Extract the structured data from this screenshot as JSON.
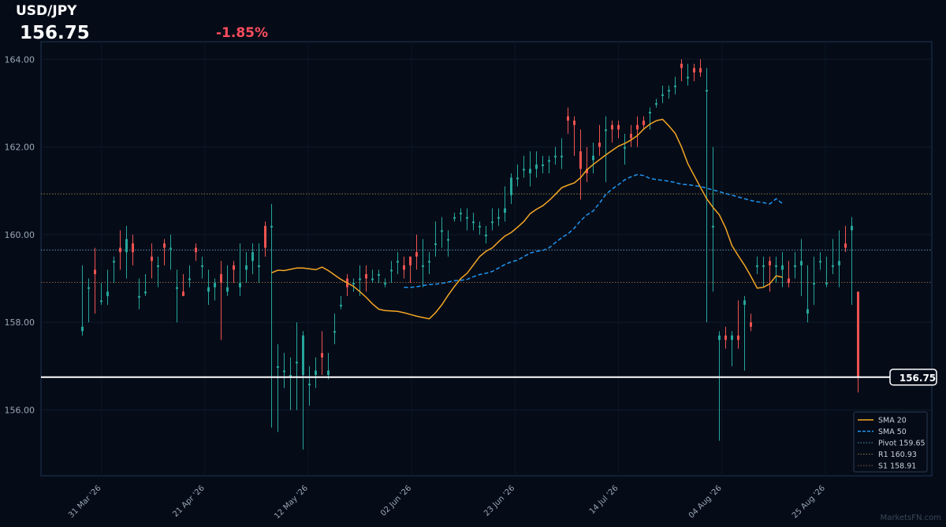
{
  "header": {
    "symbol": "USD/JPY",
    "last_price": "156.75",
    "change_pct": "-1.85%"
  },
  "watermark": "MarketsFN.com",
  "colors": {
    "background": "#050c18",
    "up": "#26a69a",
    "down": "#ef5350",
    "change_negative": "#ff4d5e",
    "sma20": "#f5a623",
    "sma50": "#2196f3",
    "pivot": "#5c8fb0",
    "r1": "#8a7a3c",
    "s1": "#8a5a3c",
    "last_price_line": "#ffffff"
  },
  "chart_data": {
    "type": "candlestick",
    "ylim": [
      154.5,
      164.4
    ],
    "y_ticks": [
      "156.00",
      "158.00",
      "160.00",
      "162.00",
      "164.00"
    ],
    "x_ticks": [
      "31 Mar '26",
      "21 Apr '26",
      "12 May '26",
      "02 Jun '26",
      "23 Jun '26",
      "14 Jul '26",
      "04 Aug '26",
      "25 Aug '26"
    ],
    "legend_position": "bottom-right",
    "legend": [
      {
        "label": "SMA 20",
        "style": "solid",
        "color": "#f5a623"
      },
      {
        "label": "SMA 50",
        "style": "dashed",
        "color": "#2196f3"
      },
      {
        "label": "Pivot 159.65",
        "style": "dotted",
        "color": "#5c8fb0"
      },
      {
        "label": "R1 160.93",
        "style": "dotted",
        "color": "#8a7a3c"
      },
      {
        "label": "S1 158.91",
        "style": "dotted",
        "color": "#8a5a3c"
      }
    ],
    "levels": {
      "pivot": 159.65,
      "r1": 160.93,
      "s1": 158.91,
      "last": 156.75
    },
    "last_price_label": "156.75",
    "candles": [
      [
        157.8,
        159.3,
        157.7,
        157.9
      ],
      [
        158.8,
        159.0,
        158.0,
        158.8
      ],
      [
        159.2,
        159.7,
        158.2,
        159.1
      ],
      [
        158.5,
        158.9,
        158.4,
        158.5
      ],
      [
        158.6,
        159.2,
        158.4,
        158.7
      ],
      [
        159.4,
        159.5,
        158.9,
        159.4
      ],
      [
        159.7,
        160.1,
        159.2,
        159.6
      ],
      [
        159.6,
        160.2,
        159.0,
        159.9
      ],
      [
        159.8,
        160.0,
        159.3,
        159.6
      ],
      [
        158.6,
        159.0,
        158.3,
        158.6
      ],
      [
        158.7,
        159.1,
        158.6,
        158.7
      ],
      [
        159.5,
        159.8,
        159.0,
        159.4
      ],
      [
        159.3,
        159.5,
        158.8,
        159.3
      ],
      [
        159.8,
        159.9,
        159.3,
        159.7
      ],
      [
        159.7,
        160.0,
        159.2,
        159.7
      ],
      [
        158.8,
        159.2,
        158.0,
        158.8
      ],
      [
        158.7,
        159.1,
        158.6,
        158.6
      ],
      [
        159.0,
        159.3,
        158.8,
        159.0
      ],
      [
        159.7,
        159.8,
        159.4,
        159.6
      ],
      [
        159.3,
        159.5,
        159.0,
        159.3
      ],
      [
        158.7,
        159.2,
        158.4,
        158.8
      ],
      [
        158.8,
        159.0,
        158.5,
        158.9
      ],
      [
        159.1,
        159.4,
        157.6,
        158.9
      ],
      [
        158.7,
        159.3,
        158.6,
        158.8
      ],
      [
        159.3,
        159.4,
        158.9,
        159.2
      ],
      [
        158.8,
        159.8,
        158.6,
        158.9
      ],
      [
        159.2,
        159.6,
        158.9,
        159.3
      ],
      [
        159.4,
        159.8,
        159.1,
        159.6
      ],
      [
        159.3,
        159.8,
        158.9,
        159.3
      ],
      [
        160.2,
        160.3,
        159.5,
        159.7
      ],
      [
        160.2,
        160.7,
        155.6,
        160.2
      ],
      [
        157.0,
        157.5,
        155.5,
        157.0
      ],
      [
        156.9,
        157.3,
        156.5,
        156.9
      ],
      [
        156.8,
        157.2,
        156.0,
        156.8
      ],
      [
        157.1,
        158.0,
        156.0,
        157.1
      ],
      [
        156.8,
        157.8,
        155.1,
        157.7
      ],
      [
        156.6,
        157.0,
        156.1,
        156.6
      ],
      [
        156.8,
        157.2,
        156.5,
        156.9
      ],
      [
        157.3,
        157.8,
        156.8,
        157.2
      ],
      [
        156.8,
        157.3,
        156.7,
        156.9
      ],
      [
        157.8,
        158.2,
        157.5,
        157.8
      ],
      [
        158.4,
        158.6,
        158.3,
        158.4
      ],
      [
        159.0,
        159.1,
        158.6,
        158.8
      ],
      [
        158.9,
        159.0,
        158.7,
        158.9
      ],
      [
        159.0,
        159.3,
        158.6,
        159.0
      ],
      [
        159.1,
        159.3,
        158.7,
        159.0
      ],
      [
        159.0,
        159.2,
        158.9,
        159.0
      ],
      [
        159.1,
        159.2,
        158.9,
        159.1
      ],
      [
        158.9,
        159.0,
        158.8,
        158.9
      ],
      [
        159.2,
        159.4,
        158.9,
        159.2
      ],
      [
        159.4,
        159.6,
        159.1,
        159.4
      ],
      [
        159.3,
        159.5,
        159.0,
        159.2
      ],
      [
        159.5,
        159.5,
        158.9,
        159.3
      ],
      [
        159.6,
        160.0,
        159.2,
        159.5
      ],
      [
        159.3,
        159.9,
        158.8,
        159.3
      ],
      [
        159.4,
        159.6,
        159.1,
        159.4
      ],
      [
        159.8,
        160.3,
        159.5,
        159.8
      ],
      [
        160.1,
        160.4,
        159.7,
        160.1
      ],
      [
        159.9,
        160.1,
        159.5,
        159.9
      ],
      [
        160.4,
        160.5,
        160.3,
        160.4
      ],
      [
        160.5,
        160.6,
        160.3,
        160.5
      ],
      [
        160.4,
        160.6,
        160.1,
        160.4
      ],
      [
        160.3,
        160.5,
        160.1,
        160.3
      ],
      [
        160.2,
        160.3,
        160.0,
        160.2
      ],
      [
        160.0,
        160.2,
        159.8,
        160.0
      ],
      [
        160.3,
        160.6,
        160.1,
        160.3
      ],
      [
        160.4,
        160.6,
        160.2,
        160.4
      ],
      [
        160.5,
        161.1,
        160.3,
        160.6
      ],
      [
        160.9,
        161.4,
        160.7,
        161.3
      ],
      [
        161.3,
        161.6,
        161.1,
        161.3
      ],
      [
        161.5,
        161.8,
        161.3,
        161.5
      ],
      [
        161.4,
        161.9,
        161.1,
        161.5
      ],
      [
        161.5,
        161.9,
        161.3,
        161.6
      ],
      [
        161.6,
        161.8,
        161.4,
        161.6
      ],
      [
        161.7,
        161.8,
        161.4,
        161.7
      ],
      [
        161.8,
        162.0,
        161.6,
        161.8
      ],
      [
        161.8,
        162.2,
        161.5,
        161.8
      ],
      [
        162.7,
        162.9,
        162.3,
        162.6
      ],
      [
        162.6,
        162.7,
        161.8,
        162.5
      ],
      [
        161.9,
        162.4,
        160.8,
        161.5
      ],
      [
        161.5,
        162.0,
        161.2,
        161.4
      ],
      [
        161.7,
        162.1,
        161.4,
        161.8
      ],
      [
        162.1,
        162.5,
        161.8,
        162.0
      ],
      [
        162.4,
        162.7,
        161.2,
        162.4
      ],
      [
        162.5,
        162.6,
        162.1,
        162.4
      ],
      [
        162.5,
        162.6,
        162.2,
        162.4
      ],
      [
        162.0,
        162.3,
        161.6,
        162.0
      ],
      [
        162.3,
        162.5,
        162.0,
        162.2
      ],
      [
        162.5,
        162.7,
        162.0,
        162.4
      ],
      [
        162.6,
        162.7,
        162.4,
        162.5
      ],
      [
        162.8,
        162.9,
        162.4,
        162.8
      ],
      [
        163.0,
        163.1,
        162.9,
        163.0
      ],
      [
        163.2,
        163.4,
        163.0,
        163.2
      ],
      [
        163.3,
        163.4,
        163.1,
        163.3
      ],
      [
        163.4,
        163.6,
        163.2,
        163.4
      ],
      [
        163.9,
        164.0,
        163.5,
        163.8
      ],
      [
        163.6,
        163.9,
        163.4,
        163.6
      ],
      [
        163.8,
        163.9,
        163.5,
        163.7
      ],
      [
        163.8,
        164.0,
        163.6,
        163.7
      ],
      [
        163.3,
        163.8,
        158.0,
        163.3
      ],
      [
        160.2,
        162.0,
        158.7,
        160.2
      ],
      [
        157.6,
        157.8,
        155.3,
        157.7
      ],
      [
        157.7,
        157.9,
        157.4,
        157.6
      ],
      [
        157.6,
        157.8,
        157.0,
        157.7
      ],
      [
        157.7,
        158.5,
        157.4,
        157.6
      ],
      [
        158.4,
        158.6,
        156.9,
        158.5
      ],
      [
        158.0,
        158.2,
        157.8,
        157.9
      ],
      [
        159.3,
        159.5,
        159.1,
        159.3
      ],
      [
        159.3,
        159.5,
        158.8,
        159.3
      ],
      [
        159.4,
        159.5,
        158.7,
        159.3
      ],
      [
        159.3,
        159.5,
        158.9,
        159.3
      ],
      [
        159.2,
        159.6,
        158.8,
        159.3
      ],
      [
        159.0,
        159.4,
        158.8,
        158.9
      ],
      [
        159.3,
        159.6,
        159.0,
        159.3
      ],
      [
        159.3,
        159.9,
        158.6,
        159.4
      ],
      [
        158.2,
        159.3,
        158.0,
        158.3
      ],
      [
        158.9,
        159.5,
        158.4,
        158.9
      ],
      [
        159.4,
        159.6,
        159.2,
        159.4
      ],
      [
        158.9,
        159.5,
        158.8,
        158.9
      ],
      [
        159.3,
        159.9,
        159.1,
        159.3
      ],
      [
        159.3,
        160.1,
        158.8,
        159.4
      ],
      [
        159.8,
        160.2,
        159.6,
        159.7
      ],
      [
        160.1,
        160.4,
        158.4,
        160.2
      ],
      [
        158.7,
        158.7,
        156.4,
        156.75
      ]
    ],
    "sma20": [
      [
        30,
        159.13
      ],
      [
        31,
        159.19
      ],
      [
        32,
        159.18
      ],
      [
        33,
        159.21
      ],
      [
        34,
        159.24
      ],
      [
        35,
        159.24
      ],
      [
        36,
        159.22
      ],
      [
        37,
        159.2
      ],
      [
        38,
        159.26
      ],
      [
        39,
        159.18
      ],
      [
        40,
        159.08
      ],
      [
        41,
        158.98
      ],
      [
        42,
        158.9
      ],
      [
        43,
        158.82
      ],
      [
        44,
        158.7
      ],
      [
        45,
        158.57
      ],
      [
        46,
        158.42
      ],
      [
        47,
        158.3
      ],
      [
        48,
        158.27
      ],
      [
        49,
        158.26
      ],
      [
        50,
        158.25
      ],
      [
        51,
        158.22
      ],
      [
        52,
        158.18
      ],
      [
        53,
        158.14
      ],
      [
        54,
        158.11
      ],
      [
        55,
        158.08
      ],
      [
        56,
        158.22
      ],
      [
        57,
        158.4
      ],
      [
        58,
        158.62
      ],
      [
        59,
        158.82
      ],
      [
        60,
        159.0
      ],
      [
        61,
        159.12
      ],
      [
        62,
        159.31
      ],
      [
        63,
        159.5
      ],
      [
        64,
        159.62
      ],
      [
        65,
        159.7
      ],
      [
        66,
        159.84
      ],
      [
        67,
        159.97
      ],
      [
        68,
        160.05
      ],
      [
        69,
        160.17
      ],
      [
        70,
        160.3
      ],
      [
        71,
        160.48
      ],
      [
        72,
        160.58
      ],
      [
        73,
        160.66
      ],
      [
        74,
        160.78
      ],
      [
        75,
        160.92
      ],
      [
        76,
        161.07
      ],
      [
        77,
        161.13
      ],
      [
        78,
        161.18
      ],
      [
        79,
        161.3
      ],
      [
        80,
        161.48
      ],
      [
        81,
        161.6
      ],
      [
        82,
        161.71
      ],
      [
        83,
        161.82
      ],
      [
        84,
        161.92
      ],
      [
        85,
        162.02
      ],
      [
        86,
        162.08
      ],
      [
        87,
        162.16
      ],
      [
        88,
        162.26
      ],
      [
        89,
        162.41
      ],
      [
        90,
        162.52
      ],
      [
        91,
        162.6
      ],
      [
        92,
        162.63
      ],
      [
        93,
        162.48
      ],
      [
        94,
        162.31
      ],
      [
        95,
        162.0
      ],
      [
        96,
        161.62
      ],
      [
        97,
        161.35
      ],
      [
        98,
        161.08
      ],
      [
        99,
        160.82
      ],
      [
        100,
        160.62
      ],
      [
        101,
        160.45
      ],
      [
        102,
        160.15
      ],
      [
        103,
        159.75
      ],
      [
        104,
        159.52
      ],
      [
        105,
        159.3
      ],
      [
        106,
        159.05
      ],
      [
        107,
        158.78
      ],
      [
        108,
        158.8
      ],
      [
        109,
        158.88
      ],
      [
        110,
        159.06
      ],
      [
        111,
        159.03
      ]
    ],
    "sma50": [
      [
        51,
        158.8
      ],
      [
        52,
        158.8
      ],
      [
        53,
        158.81
      ],
      [
        54,
        158.84
      ],
      [
        55,
        158.86
      ],
      [
        56,
        158.87
      ],
      [
        57,
        158.89
      ],
      [
        58,
        158.92
      ],
      [
        59,
        158.95
      ],
      [
        60,
        158.96
      ],
      [
        61,
        158.98
      ],
      [
        62,
        159.04
      ],
      [
        63,
        159.09
      ],
      [
        64,
        159.12
      ],
      [
        65,
        159.16
      ],
      [
        66,
        159.24
      ],
      [
        67,
        159.32
      ],
      [
        68,
        159.38
      ],
      [
        69,
        159.42
      ],
      [
        70,
        159.5
      ],
      [
        71,
        159.58
      ],
      [
        72,
        159.62
      ],
      [
        73,
        159.64
      ],
      [
        74,
        159.7
      ],
      [
        75,
        159.82
      ],
      [
        76,
        159.93
      ],
      [
        77,
        160.02
      ],
      [
        78,
        160.15
      ],
      [
        79,
        160.32
      ],
      [
        80,
        160.45
      ],
      [
        81,
        160.54
      ],
      [
        82,
        160.72
      ],
      [
        83,
        160.92
      ],
      [
        84,
        161.04
      ],
      [
        85,
        161.14
      ],
      [
        86,
        161.25
      ],
      [
        87,
        161.32
      ],
      [
        88,
        161.37
      ],
      [
        89,
        161.35
      ],
      [
        90,
        161.28
      ],
      [
        91,
        161.26
      ],
      [
        92,
        161.24
      ],
      [
        93,
        161.22
      ],
      [
        94,
        161.19
      ],
      [
        95,
        161.15
      ],
      [
        96,
        161.14
      ],
      [
        97,
        161.12
      ],
      [
        98,
        161.1
      ],
      [
        99,
        161.06
      ],
      [
        100,
        161.02
      ],
      [
        101,
        160.98
      ],
      [
        102,
        160.94
      ],
      [
        103,
        160.9
      ],
      [
        104,
        160.86
      ],
      [
        105,
        160.82
      ],
      [
        106,
        160.78
      ],
      [
        107,
        160.75
      ],
      [
        108,
        160.73
      ],
      [
        109,
        160.7
      ],
      [
        110,
        160.82
      ],
      [
        111,
        160.71
      ]
    ]
  }
}
